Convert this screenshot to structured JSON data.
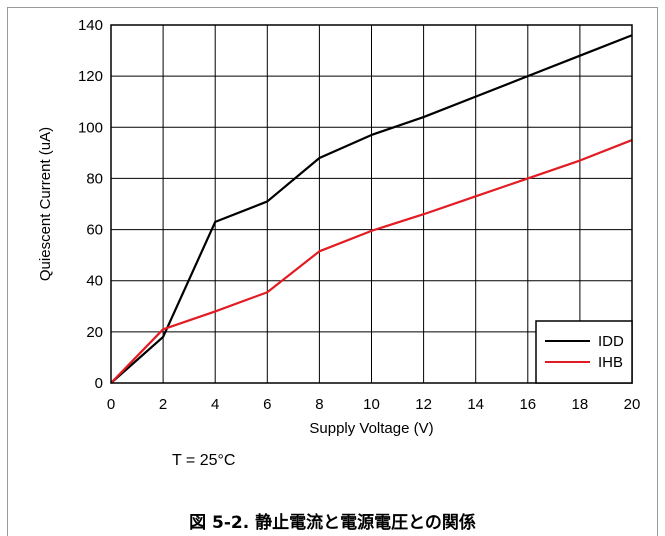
{
  "chart_data": {
    "type": "line",
    "xlabel": "Supply Voltage (V)",
    "ylabel": "Quiescent Current (uA)",
    "xlim": [
      0,
      20
    ],
    "ylim": [
      0,
      140
    ],
    "xticks": [
      0,
      2,
      4,
      6,
      8,
      10,
      12,
      14,
      16,
      18,
      20
    ],
    "yticks": [
      0,
      20,
      40,
      60,
      80,
      100,
      120,
      140
    ],
    "grid": true,
    "legend_position": "bottom-right",
    "series": [
      {
        "name": "IDD",
        "color": "#000000",
        "x": [
          0,
          2,
          4,
          6,
          8,
          10,
          12,
          14,
          16,
          18,
          20
        ],
        "y": [
          0,
          18,
          63,
          71,
          88,
          97,
          104,
          112,
          120,
          128,
          136
        ]
      },
      {
        "name": "IHB",
        "color": "#e31b23",
        "x": [
          0,
          2,
          4,
          6,
          8,
          10,
          12,
          14,
          16,
          18,
          20
        ],
        "y": [
          0,
          21,
          28,
          35.5,
          51.5,
          59.5,
          66,
          73,
          80,
          87,
          95
        ]
      }
    ]
  },
  "condition_text": "T = 25°C",
  "caption": "図 5-2. 静止電流と電源電圧との関係"
}
